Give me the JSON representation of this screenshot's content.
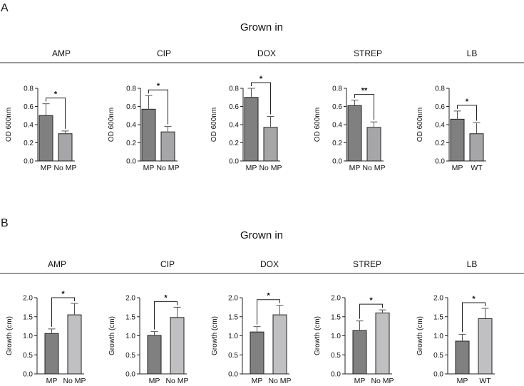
{
  "panels": [
    {
      "letter": "A",
      "heading": "Grown in",
      "chart_data": [
        {
          "type": "bar",
          "title": "AMP",
          "ylabel": "OD 600nm",
          "ylim": [
            0,
            0.8
          ],
          "yticks": [
            "0.0",
            "0.2",
            "0.4",
            "0.6",
            "0.8"
          ],
          "yvalues": [
            0,
            0.2,
            0.4,
            0.6,
            0.8
          ],
          "categories": [
            "MP",
            "No MP"
          ],
          "values": [
            0.5,
            0.3
          ],
          "errors": [
            0.13,
            0.03
          ],
          "significance": "*",
          "bar_colors": [
            "#808080",
            "#a6a6a8"
          ]
        },
        {
          "type": "bar",
          "title": "CIP",
          "ylabel": "OD 600nm",
          "ylim": [
            0,
            0.8
          ],
          "yticks": [
            "0.0",
            "0.2",
            "0.4",
            "0.6",
            "0.8"
          ],
          "yvalues": [
            0,
            0.2,
            0.4,
            0.6,
            0.8
          ],
          "categories": [
            "MP",
            "No MP"
          ],
          "values": [
            0.57,
            0.32
          ],
          "errors": [
            0.15,
            0.06
          ],
          "significance": "*",
          "bar_colors": [
            "#808080",
            "#a6a6a8"
          ]
        },
        {
          "type": "bar",
          "title": "DOX",
          "ylabel": "OD 600nm",
          "ylim": [
            0,
            0.8
          ],
          "yticks": [
            "0.0",
            "0.2",
            "0.4",
            "0.6",
            "0.8"
          ],
          "yvalues": [
            0,
            0.2,
            0.4,
            0.6,
            0.8
          ],
          "categories": [
            "MP",
            "No MP"
          ],
          "values": [
            0.7,
            0.37
          ],
          "errors": [
            0.1,
            0.12
          ],
          "significance": "*",
          "bar_colors": [
            "#808080",
            "#a6a6a8"
          ]
        },
        {
          "type": "bar",
          "title": "STREP",
          "ylabel": "OD 600nm",
          "ylim": [
            0,
            0.8
          ],
          "yticks": [
            "0.0",
            "0.2",
            "0.4",
            "0.6",
            "0.8"
          ],
          "yvalues": [
            0,
            0.2,
            0.4,
            0.6,
            0.8
          ],
          "categories": [
            "MP",
            "No MP"
          ],
          "values": [
            0.61,
            0.37
          ],
          "errors": [
            0.06,
            0.06
          ],
          "significance": "**",
          "bar_colors": [
            "#808080",
            "#a6a6a8"
          ]
        },
        {
          "type": "bar",
          "title": "LB",
          "ylabel": "OD 600nm",
          "ylim": [
            0,
            0.8
          ],
          "yticks": [
            "0.0",
            "0.2",
            "0.4",
            "0.6",
            "0.8"
          ],
          "yvalues": [
            0,
            0.2,
            0.4,
            0.6,
            0.8
          ],
          "categories": [
            "MP",
            "WT"
          ],
          "values": [
            0.46,
            0.3
          ],
          "errors": [
            0.09,
            0.12
          ],
          "significance": "*",
          "bar_colors": [
            "#808080",
            "#a6a6a8"
          ]
        }
      ]
    },
    {
      "letter": "B",
      "heading": "Grown in",
      "chart_data": [
        {
          "type": "bar",
          "title": "AMP",
          "ylabel": "Growth (cm)",
          "ylim": [
            0,
            2.0
          ],
          "yticks": [
            "0.0",
            "0.5",
            "1.0",
            "1.5",
            "2.0"
          ],
          "yvalues": [
            0,
            0.5,
            1.0,
            1.5,
            2.0
          ],
          "categories": [
            "MP",
            "No MP"
          ],
          "values": [
            1.06,
            1.55
          ],
          "errors": [
            0.12,
            0.3
          ],
          "significance": "*",
          "bar_colors": [
            "#808080",
            "#c0c0c2"
          ]
        },
        {
          "type": "bar",
          "title": "CIP",
          "ylabel": "Growth (cm)",
          "ylim": [
            0,
            2.0
          ],
          "yticks": [
            "0.0",
            "0.5",
            "1.0",
            "1.5",
            "2.0"
          ],
          "yvalues": [
            0,
            0.5,
            1.0,
            1.5,
            2.0
          ],
          "categories": [
            "MP",
            "No MP"
          ],
          "values": [
            1.01,
            1.48
          ],
          "errors": [
            0.1,
            0.27
          ],
          "significance": "*",
          "bar_colors": [
            "#808080",
            "#c0c0c2"
          ]
        },
        {
          "type": "bar",
          "title": "DOX",
          "ylabel": "Growth (cm)",
          "ylim": [
            0,
            2.0
          ],
          "yticks": [
            "0.0",
            "0.5",
            "1.0",
            "1.5",
            "2.0"
          ],
          "yvalues": [
            0,
            0.5,
            1.0,
            1.5,
            2.0
          ],
          "categories": [
            "MP",
            "No MP"
          ],
          "values": [
            1.1,
            1.55
          ],
          "errors": [
            0.14,
            0.25
          ],
          "significance": "*",
          "bar_colors": [
            "#808080",
            "#c0c0c2"
          ]
        },
        {
          "type": "bar",
          "title": "STREP",
          "ylabel": "Growth (cm)",
          "ylim": [
            0,
            2.0
          ],
          "yticks": [
            "0.0",
            "0.5",
            "1.0",
            "1.5",
            "2.0"
          ],
          "yvalues": [
            0,
            0.5,
            1.0,
            1.5,
            2.0
          ],
          "categories": [
            "MP",
            "No MP"
          ],
          "values": [
            1.14,
            1.6
          ],
          "errors": [
            0.25,
            0.08
          ],
          "significance": "*",
          "bar_colors": [
            "#808080",
            "#c0c0c2"
          ]
        },
        {
          "type": "bar",
          "title": "LB",
          "ylabel": "Growth (cm)",
          "ylim": [
            0,
            2.0
          ],
          "yticks": [
            "0.0",
            "0.5",
            "1.0",
            "1.5",
            "2.0"
          ],
          "yvalues": [
            0,
            0.5,
            1.0,
            1.5,
            2.0
          ],
          "categories": [
            "MP",
            "WT"
          ],
          "values": [
            0.86,
            1.45
          ],
          "errors": [
            0.18,
            0.27
          ],
          "significance": "*",
          "bar_colors": [
            "#808080",
            "#c0c0c2"
          ]
        }
      ]
    }
  ]
}
